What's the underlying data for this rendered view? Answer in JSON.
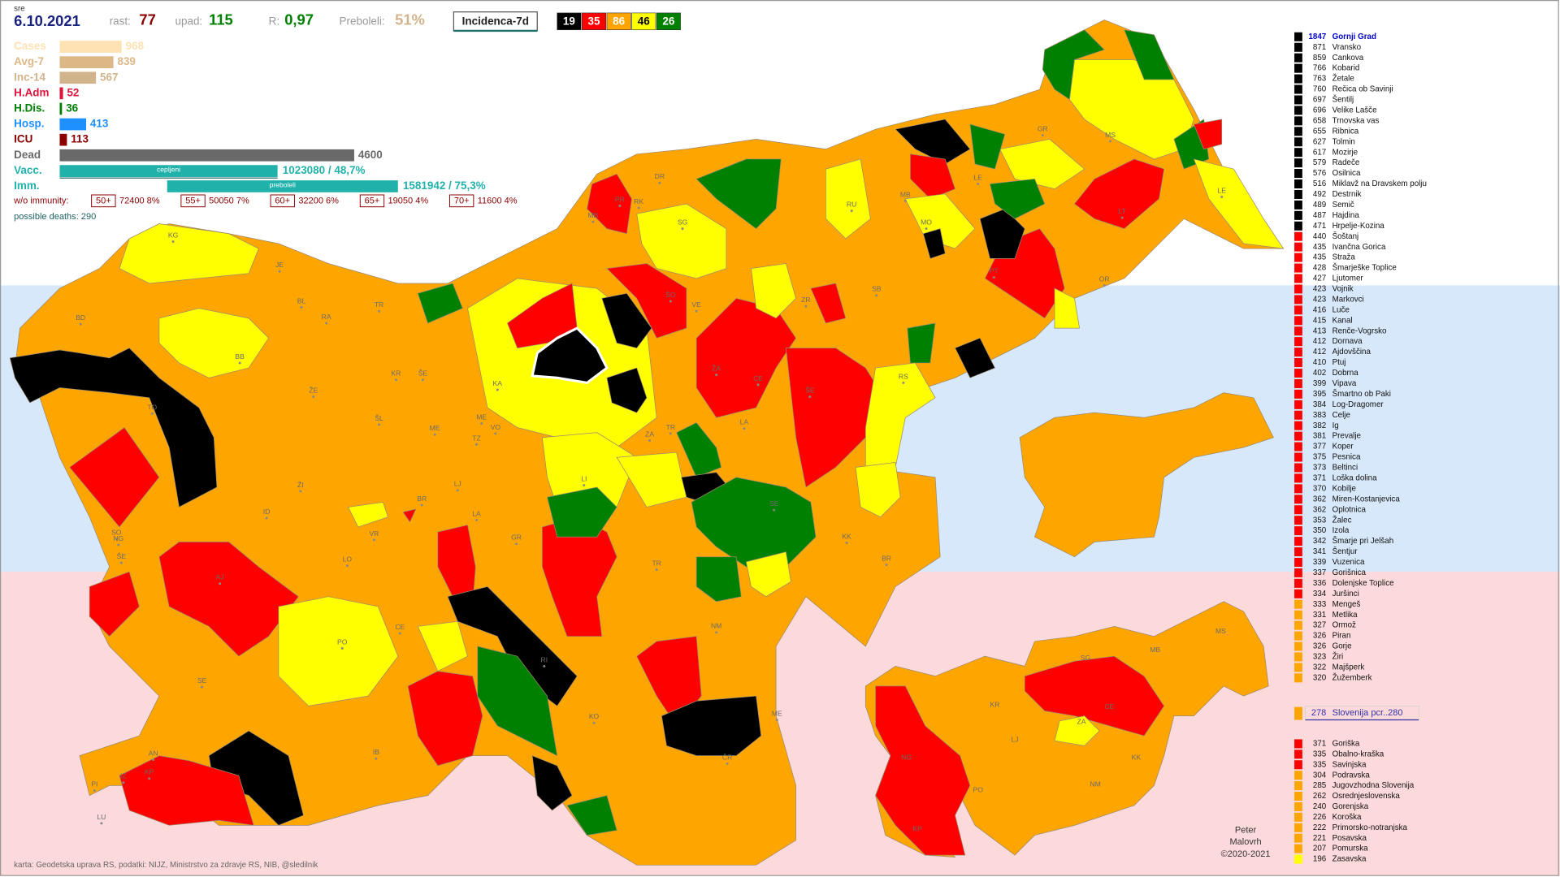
{
  "header": {
    "day": "sre",
    "date": "6.10.2021",
    "rast_label": "rast:",
    "rast": 77,
    "upad_label": "upad:",
    "upad": 115,
    "r_label": "R:",
    "r": "0,97",
    "preboleli_label": "Preboleli:",
    "preboleli": "51%",
    "incidence": "Incidenca-7d",
    "legend": [
      {
        "count": 19,
        "color": "#000000",
        "text_color": "#ffffff"
      },
      {
        "count": 35,
        "color": "#ff0000",
        "text_color": "#ffffff"
      },
      {
        "count": 86,
        "color": "#ffa500",
        "text_color": "#ffffff"
      },
      {
        "count": 46,
        "color": "#ffff00",
        "text_color": "#000000"
      },
      {
        "count": 26,
        "color": "#008000",
        "text_color": "#ffffff"
      }
    ]
  },
  "stats": [
    {
      "label": "Cases",
      "value": 968,
      "color": "#ffe2b3"
    },
    {
      "label": "Avg-7",
      "value": 839,
      "color": "#dcb887"
    },
    {
      "label": "Inc-14",
      "value": 567,
      "color": "#d2b48c"
    },
    {
      "label": "H.Adm",
      "value": 52,
      "color": "#dc143c"
    },
    {
      "label": "H.Dis.",
      "value": 36,
      "color": "#008000"
    },
    {
      "label": "Hosp.",
      "value": 413,
      "color": "#1e90ff"
    },
    {
      "label": "ICU",
      "value": 113,
      "color": "#8b0000"
    },
    {
      "label": "Dead",
      "value": 4600,
      "color": "#696969"
    }
  ],
  "vaccination": [
    {
      "label": "Vacc.",
      "bar_text": "cepljeni",
      "value": "1023080 / 48,7%"
    },
    {
      "label": "Imm.",
      "bar_text": "preboleli",
      "value": "1581942 / 75,3%"
    }
  ],
  "immunity": {
    "label": "w/o immunity:",
    "groups": [
      {
        "age": "50+",
        "text": "72400 8%"
      },
      {
        "age": "55+",
        "text": "50050 7%"
      },
      {
        "age": "60+",
        "text": "32200 6%"
      },
      {
        "age": "65+",
        "text": "19050 4%"
      },
      {
        "age": "70+",
        "text": "11600 4%"
      }
    ]
  },
  "possible_deaths": "possible deaths: 290",
  "municipalities": [
    {
      "value": 1847,
      "name": "Gornji Grad",
      "color": "#000000"
    },
    {
      "value": 871,
      "name": "Vransko",
      "color": "#000000"
    },
    {
      "value": 859,
      "name": "Cankova",
      "color": "#000000"
    },
    {
      "value": 766,
      "name": "Kobarid",
      "color": "#000000"
    },
    {
      "value": 763,
      "name": "Žetale",
      "color": "#000000"
    },
    {
      "value": 760,
      "name": "Rečica ob Savinji",
      "color": "#000000"
    },
    {
      "value": 697,
      "name": "Šentilj",
      "color": "#000000"
    },
    {
      "value": 696,
      "name": "Velike Lašče",
      "color": "#000000"
    },
    {
      "value": 658,
      "name": "Trnovska vas",
      "color": "#000000"
    },
    {
      "value": 655,
      "name": "Ribnica",
      "color": "#000000"
    },
    {
      "value": 627,
      "name": "Tolmin",
      "color": "#000000"
    },
    {
      "value": 617,
      "name": "Mozirje",
      "color": "#000000"
    },
    {
      "value": 579,
      "name": "Radeče",
      "color": "#000000"
    },
    {
      "value": 576,
      "name": "Osilnica",
      "color": "#000000"
    },
    {
      "value": 516,
      "name": "Miklavž na Dravskem polju",
      "color": "#000000"
    },
    {
      "value": 492,
      "name": "Destrnik",
      "color": "#000000"
    },
    {
      "value": 489,
      "name": "Semič",
      "color": "#000000"
    },
    {
      "value": 487,
      "name": "Hajdina",
      "color": "#000000"
    },
    {
      "value": 471,
      "name": "Hrpelje-Kozina",
      "color": "#000000"
    },
    {
      "value": 440,
      "name": "Šoštanj",
      "color": "#ff0000"
    },
    {
      "value": 435,
      "name": "Ivančna Gorica",
      "color": "#ff0000"
    },
    {
      "value": 435,
      "name": "Straža",
      "color": "#ff0000"
    },
    {
      "value": 428,
      "name": "Šmarješke Toplice",
      "color": "#ff0000"
    },
    {
      "value": 427,
      "name": "Ljutomer",
      "color": "#ff0000"
    },
    {
      "value": 423,
      "name": "Vojnik",
      "color": "#ff0000"
    },
    {
      "value": 423,
      "name": "Markovci",
      "color": "#ff0000"
    },
    {
      "value": 416,
      "name": "Luče",
      "color": "#ff0000"
    },
    {
      "value": 415,
      "name": "Kanal",
      "color": "#ff0000"
    },
    {
      "value": 413,
      "name": "Renče-Vogrsko",
      "color": "#ff0000"
    },
    {
      "value": 412,
      "name": "Dornava",
      "color": "#ff0000"
    },
    {
      "value": 412,
      "name": "Ajdovščina",
      "color": "#ff0000"
    },
    {
      "value": 410,
      "name": "Ptuj",
      "color": "#ff0000"
    },
    {
      "value": 402,
      "name": "Dobrna",
      "color": "#ff0000"
    },
    {
      "value": 399,
      "name": "Vipava",
      "color": "#ff0000"
    },
    {
      "value": 395,
      "name": "Šmartno ob Paki",
      "color": "#ff0000"
    },
    {
      "value": 384,
      "name": "Log-Dragomer",
      "color": "#ff0000"
    },
    {
      "value": 383,
      "name": "Celje",
      "color": "#ff0000"
    },
    {
      "value": 382,
      "name": "Ig",
      "color": "#ff0000"
    },
    {
      "value": 381,
      "name": "Prevalje",
      "color": "#ff0000"
    },
    {
      "value": 377,
      "name": "Koper",
      "color": "#ff0000"
    },
    {
      "value": 375,
      "name": "Pesnica",
      "color": "#ff0000"
    },
    {
      "value": 373,
      "name": "Beltinci",
      "color": "#ff0000"
    },
    {
      "value": 371,
      "name": "Loška dolina",
      "color": "#ff0000"
    },
    {
      "value": 370,
      "name": "Kobilje",
      "color": "#ff0000"
    },
    {
      "value": 362,
      "name": "Miren-Kostanjevica",
      "color": "#ff0000"
    },
    {
      "value": 362,
      "name": "Oplotnica",
      "color": "#ff0000"
    },
    {
      "value": 353,
      "name": "Žalec",
      "color": "#ff0000"
    },
    {
      "value": 350,
      "name": "Izola",
      "color": "#ff0000"
    },
    {
      "value": 342,
      "name": "Šmarje pri Jelšah",
      "color": "#ff0000"
    },
    {
      "value": 341,
      "name": "Šentjur",
      "color": "#ff0000"
    },
    {
      "value": 339,
      "name": "Vuzenica",
      "color": "#ff0000"
    },
    {
      "value": 337,
      "name": "Gorišnica",
      "color": "#ff0000"
    },
    {
      "value": 336,
      "name": "Dolenjske Toplice",
      "color": "#ff0000"
    },
    {
      "value": 334,
      "name": "Juršinci",
      "color": "#ff0000"
    },
    {
      "value": 333,
      "name": "Mengeš",
      "color": "#ffa500"
    },
    {
      "value": 331,
      "name": "Metlika",
      "color": "#ffa500"
    },
    {
      "value": 327,
      "name": "Ormož",
      "color": "#ffa500"
    },
    {
      "value": 326,
      "name": "Piran",
      "color": "#ffa500"
    },
    {
      "value": 326,
      "name": "Gorje",
      "color": "#ffa500"
    },
    {
      "value": 323,
      "name": "Žiri",
      "color": "#ffa500"
    },
    {
      "value": 322,
      "name": "Majšperk",
      "color": "#ffa500"
    },
    {
      "value": 320,
      "name": "Žužemberk",
      "color": "#ffa500"
    }
  ],
  "slovenia": {
    "value": 278,
    "label": "Slovenija  pcr..280",
    "color": "#ffa500"
  },
  "regions": [
    {
      "value": 371,
      "name": "Goriška",
      "color": "#ff0000"
    },
    {
      "value": 335,
      "name": "Obalno-kraška",
      "color": "#ff0000"
    },
    {
      "value": 335,
      "name": "Savinjska",
      "color": "#ff0000"
    },
    {
      "value": 304,
      "name": "Podravska",
      "color": "#ffa500"
    },
    {
      "value": 285,
      "name": "Jugovzhodna Slovenija",
      "color": "#ffa500"
    },
    {
      "value": 262,
      "name": "Osrednjeslovenska",
      "color": "#ffa500"
    },
    {
      "value": 240,
      "name": "Gorenjska",
      "color": "#ffa500"
    },
    {
      "value": 226,
      "name": "Koroška",
      "color": "#ffa500"
    },
    {
      "value": 222,
      "name": "Primorsko-notranjska",
      "color": "#ffa500"
    },
    {
      "value": 221,
      "name": "Posavska",
      "color": "#ffa500"
    },
    {
      "value": 207,
      "name": "Pomurska",
      "color": "#ffa500"
    },
    {
      "value": 196,
      "name": "Zasavska",
      "color": "#ffff00"
    }
  ],
  "map_labels": [
    "KG",
    "JE",
    "BD",
    "BL",
    "RA",
    "TR",
    "BB",
    "KR",
    "ŠE",
    "ŽE",
    "TO",
    "ŠL",
    "ME",
    "ME",
    "VO",
    "TZ",
    "KA",
    "DR",
    "PR",
    "RK",
    "MB",
    "SG",
    "RU",
    "MB",
    "LE",
    "GR",
    "MS",
    "LT",
    "LE",
    "ŠO",
    "VE",
    "ZR",
    "SB",
    "OR",
    "PT",
    "MO",
    "ŽA",
    "CE",
    "ŠE",
    "RS",
    "TR",
    "ZA",
    "LA",
    "LI",
    "SE",
    "LJ",
    "ID",
    "ŽI",
    "BR",
    "VR",
    "LA",
    "GR",
    "TR",
    "KK",
    "BR",
    "LO",
    "AJ",
    "SO",
    "NG",
    "ŠE",
    "CE",
    "PO",
    "NM",
    "RI",
    "KO",
    "ME",
    "SE",
    "IB",
    "ČR",
    "AN",
    "KP",
    "IZ",
    "PI",
    "LU"
  ],
  "region_map_labels": [
    "SG",
    "MB",
    "MS",
    "KR",
    "CE",
    "ZA",
    "LJ",
    "KK",
    "NG",
    "PO",
    "NM",
    "KP"
  ],
  "author": [
    "Peter",
    "Malovrh",
    "©2020-2021"
  ],
  "credits": "karta: Geodetska uprava RS,  podatki: NIJZ, Ministrstvo za zdravje RS, NIB, @sledilnik"
}
